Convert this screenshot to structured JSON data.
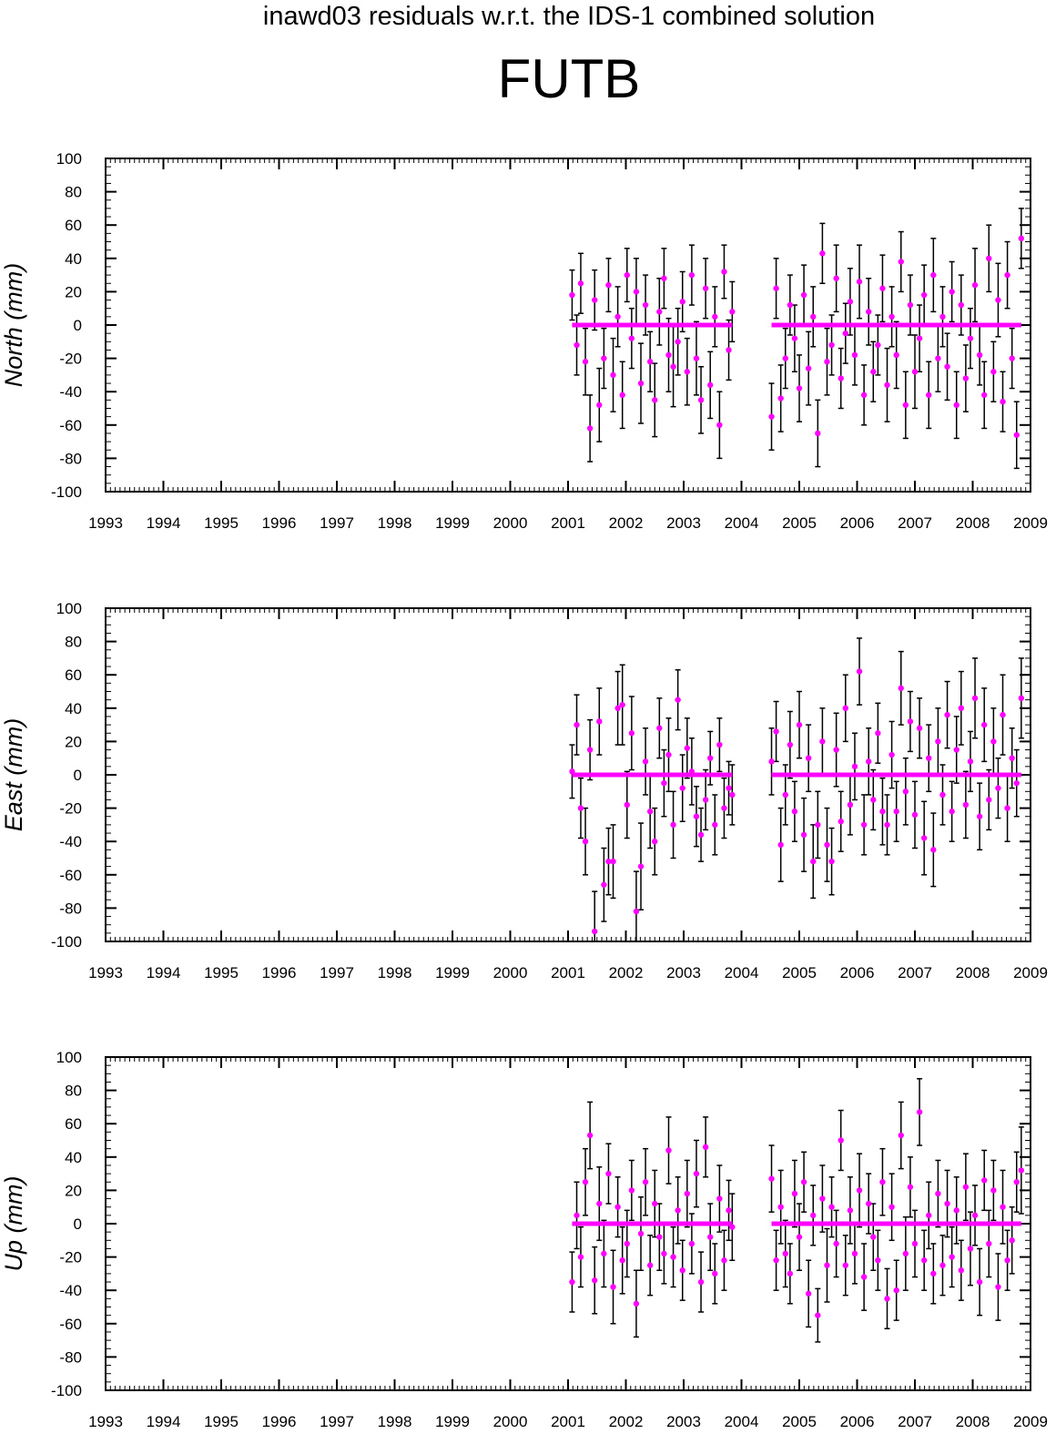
{
  "header": {
    "suptitle": "inawd03 residuals w.r.t. the IDS-1 combined solution",
    "station": "FUTB"
  },
  "colors": {
    "points": "#ff00ff",
    "errorbars": "#000000",
    "zero_line": "#ff00ff",
    "axes": "#000000"
  },
  "chart_data": [
    {
      "type": "scatter",
      "title": "",
      "ylabel": "North (mm)",
      "xlabel": "",
      "xlim": [
        1993,
        2009
      ],
      "ylim": [
        -100,
        100
      ],
      "x_ticks": [
        "1993",
        "1994",
        "1995",
        "1996",
        "1997",
        "1998",
        "1999",
        "2000",
        "2001",
        "2002",
        "2003",
        "2004",
        "2005",
        "2006",
        "2007",
        "2008",
        "2009"
      ],
      "y_ticks": [
        "100",
        "80",
        "60",
        "40",
        "20",
        "0",
        "-20",
        "-40",
        "-60",
        "-80",
        "-100"
      ],
      "error_bars": true,
      "zero_line": true,
      "x": [
        2001.07,
        2001.15,
        2001.22,
        2001.3,
        2001.38,
        2001.46,
        2001.54,
        2001.62,
        2001.7,
        2001.78,
        2001.86,
        2001.94,
        2002.02,
        2002.1,
        2002.18,
        2002.26,
        2002.34,
        2002.42,
        2002.5,
        2002.58,
        2002.66,
        2002.74,
        2002.82,
        2002.9,
        2002.98,
        2003.06,
        2003.14,
        2003.22,
        2003.3,
        2003.38,
        2003.46,
        2003.54,
        2003.62,
        2003.7,
        2003.78,
        2003.84,
        2004.52,
        2004.6,
        2004.68,
        2004.76,
        2004.84,
        2004.92,
        2005.0,
        2005.08,
        2005.16,
        2005.24,
        2005.32,
        2005.4,
        2005.48,
        2005.56,
        2005.64,
        2005.72,
        2005.8,
        2005.88,
        2005.96,
        2006.04,
        2006.12,
        2006.2,
        2006.28,
        2006.36,
        2006.44,
        2006.52,
        2006.6,
        2006.68,
        2006.76,
        2006.84,
        2006.92,
        2007.0,
        2007.08,
        2007.16,
        2007.24,
        2007.32,
        2007.4,
        2007.48,
        2007.56,
        2007.64,
        2007.72,
        2007.8,
        2007.88,
        2007.96,
        2008.04,
        2008.12,
        2008.2,
        2008.28,
        2008.36,
        2008.44,
        2008.52,
        2008.6,
        2008.68,
        2008.76,
        2008.84
      ],
      "y": [
        18,
        -12,
        25,
        -22,
        -62,
        15,
        -48,
        -20,
        24,
        -30,
        5,
        -42,
        30,
        -8,
        20,
        -35,
        12,
        -22,
        -45,
        8,
        28,
        -18,
        -25,
        -10,
        14,
        -28,
        30,
        -20,
        -45,
        22,
        -36,
        5,
        -60,
        32,
        -15,
        8,
        -55,
        22,
        -44,
        -20,
        12,
        -8,
        -38,
        18,
        -26,
        5,
        -65,
        43,
        -22,
        -12,
        28,
        -32,
        -5,
        14,
        -18,
        26,
        -42,
        8,
        -28,
        -12,
        22,
        -36,
        5,
        -18,
        38,
        -48,
        12,
        -28,
        -8,
        18,
        -42,
        30,
        -20,
        5,
        -25,
        20,
        -48,
        12,
        -32,
        -8,
        24,
        -18,
        -42,
        40,
        -28,
        15,
        -46,
        30,
        -20,
        -66,
        52
      ],
      "err": [
        15,
        18,
        18,
        20,
        20,
        18,
        22,
        18,
        16,
        22,
        18,
        20,
        16,
        18,
        20,
        24,
        18,
        18,
        22,
        20,
        18,
        22,
        24,
        20,
        18,
        20,
        18,
        22,
        20,
        18,
        20,
        18,
        20,
        16,
        18,
        18,
        20,
        18,
        20,
        18,
        18,
        20,
        20,
        18,
        22,
        18,
        20,
        18,
        20,
        18,
        20,
        18,
        18,
        20,
        18,
        22,
        18,
        20,
        18,
        18,
        20,
        22,
        18,
        20,
        18,
        20,
        18,
        22,
        20,
        18,
        20,
        22,
        20,
        18,
        20,
        18,
        20,
        18,
        20,
        18,
        22,
        18,
        20,
        20,
        18,
        22,
        18,
        20,
        18,
        20,
        18
      ],
      "series_notes": "Points cluster within about +/-30 mm of zero"
    },
    {
      "type": "scatter",
      "title": "",
      "ylabel": "East (mm)",
      "xlabel": "",
      "xlim": [
        1993,
        2009
      ],
      "ylim": [
        -100,
        100
      ],
      "x_ticks": [
        "1993",
        "1994",
        "1995",
        "1996",
        "1997",
        "1998",
        "1999",
        "2000",
        "2001",
        "2002",
        "2003",
        "2004",
        "2005",
        "2006",
        "2007",
        "2008",
        "2009"
      ],
      "y_ticks": [
        "100",
        "80",
        "60",
        "40",
        "20",
        "0",
        "-20",
        "-40",
        "-60",
        "-80",
        "-100"
      ],
      "error_bars": true,
      "zero_line": true,
      "x": [
        2001.07,
        2001.15,
        2001.22,
        2001.3,
        2001.38,
        2001.46,
        2001.54,
        2001.62,
        2001.7,
        2001.78,
        2001.86,
        2001.94,
        2002.02,
        2002.1,
        2002.18,
        2002.26,
        2002.34,
        2002.42,
        2002.5,
        2002.58,
        2002.66,
        2002.74,
        2002.82,
        2002.9,
        2002.98,
        2003.06,
        2003.14,
        2003.22,
        2003.3,
        2003.38,
        2003.46,
        2003.54,
        2003.62,
        2003.7,
        2003.78,
        2003.84,
        2004.52,
        2004.6,
        2004.68,
        2004.76,
        2004.84,
        2004.92,
        2005.0,
        2005.08,
        2005.16,
        2005.24,
        2005.32,
        2005.4,
        2005.48,
        2005.56,
        2005.64,
        2005.72,
        2005.8,
        2005.88,
        2005.96,
        2006.04,
        2006.12,
        2006.2,
        2006.28,
        2006.36,
        2006.44,
        2006.52,
        2006.6,
        2006.68,
        2006.76,
        2006.84,
        2006.92,
        2007.0,
        2007.08,
        2007.16,
        2007.24,
        2007.32,
        2007.4,
        2007.48,
        2007.56,
        2007.64,
        2007.72,
        2007.8,
        2007.88,
        2007.96,
        2008.04,
        2008.12,
        2008.2,
        2008.28,
        2008.36,
        2008.44,
        2008.52,
        2008.6,
        2008.68,
        2008.76,
        2008.84
      ],
      "y": [
        2,
        30,
        -20,
        -40,
        15,
        -94,
        32,
        -66,
        -52,
        -52,
        40,
        42,
        -18,
        25,
        -82,
        -55,
        8,
        -22,
        -40,
        28,
        -5,
        12,
        -30,
        45,
        -8,
        16,
        2,
        -25,
        -36,
        -15,
        10,
        -30,
        18,
        -20,
        -8,
        -12,
        8,
        26,
        -42,
        -12,
        18,
        -22,
        30,
        -36,
        10,
        -52,
        -30,
        20,
        -42,
        -52,
        15,
        -28,
        40,
        -18,
        5,
        62,
        -30,
        8,
        -15,
        25,
        -22,
        -30,
        12,
        -22,
        52,
        -10,
        32,
        -24,
        28,
        -38,
        10,
        -45,
        20,
        -12,
        36,
        -22,
        15,
        40,
        -18,
        8,
        46,
        -25,
        30,
        -15,
        20,
        -8,
        36,
        -20,
        10,
        -5,
        46
      ],
      "err": [
        16,
        18,
        18,
        20,
        18,
        24,
        20,
        22,
        20,
        22,
        22,
        24,
        20,
        22,
        24,
        26,
        20,
        22,
        20,
        18,
        20,
        22,
        20,
        18,
        20,
        18,
        20,
        18,
        16,
        18,
        16,
        18,
        16,
        18,
        16,
        18,
        20,
        18,
        22,
        18,
        20,
        18,
        20,
        22,
        20,
        22,
        20,
        20,
        22,
        20,
        22,
        18,
        20,
        18,
        20,
        20,
        18,
        20,
        18,
        18,
        20,
        18,
        20,
        18,
        22,
        20,
        18,
        20,
        18,
        22,
        20,
        22,
        20,
        18,
        20,
        18,
        20,
        22,
        20,
        18,
        24,
        20,
        22,
        18,
        20,
        18,
        24,
        20,
        18,
        20,
        24
      ],
      "series_notes": "Scatter widens to about -94 mm in 2001"
    },
    {
      "type": "scatter",
      "title": "",
      "ylabel": "Up (mm)",
      "xlabel": "",
      "xlim": [
        1993,
        2009
      ],
      "ylim": [
        -100,
        100
      ],
      "x_ticks": [
        "1993",
        "1994",
        "1995",
        "1996",
        "1997",
        "1998",
        "1999",
        "2000",
        "2001",
        "2002",
        "2003",
        "2004",
        "2005",
        "2006",
        "2007",
        "2008",
        "2009"
      ],
      "y_ticks": [
        "100",
        "80",
        "60",
        "40",
        "20",
        "0",
        "-20",
        "-40",
        "-60",
        "-80",
        "-100"
      ],
      "error_bars": true,
      "zero_line": true,
      "x": [
        2001.07,
        2001.15,
        2001.22,
        2001.3,
        2001.38,
        2001.46,
        2001.54,
        2001.62,
        2001.7,
        2001.78,
        2001.86,
        2001.94,
        2002.02,
        2002.1,
        2002.18,
        2002.26,
        2002.34,
        2002.42,
        2002.5,
        2002.58,
        2002.66,
        2002.74,
        2002.82,
        2002.9,
        2002.98,
        2003.06,
        2003.14,
        2003.22,
        2003.3,
        2003.38,
        2003.46,
        2003.54,
        2003.62,
        2003.7,
        2003.78,
        2003.84,
        2004.52,
        2004.6,
        2004.68,
        2004.76,
        2004.84,
        2004.92,
        2005.0,
        2005.08,
        2005.16,
        2005.24,
        2005.32,
        2005.4,
        2005.48,
        2005.56,
        2005.64,
        2005.72,
        2005.8,
        2005.88,
        2005.96,
        2006.04,
        2006.12,
        2006.2,
        2006.28,
        2006.36,
        2006.44,
        2006.52,
        2006.6,
        2006.68,
        2006.76,
        2006.84,
        2006.92,
        2007.0,
        2007.08,
        2007.16,
        2007.24,
        2007.32,
        2007.4,
        2007.48,
        2007.56,
        2007.64,
        2007.72,
        2007.8,
        2007.88,
        2007.96,
        2008.04,
        2008.12,
        2008.2,
        2008.28,
        2008.36,
        2008.44,
        2008.52,
        2008.6,
        2008.68,
        2008.76,
        2008.84
      ],
      "y": [
        -35,
        5,
        -20,
        25,
        53,
        -34,
        12,
        -18,
        30,
        -38,
        10,
        -22,
        -12,
        20,
        -48,
        -6,
        25,
        -25,
        12,
        -8,
        -18,
        44,
        -20,
        8,
        -28,
        18,
        -12,
        30,
        -35,
        46,
        -8,
        -30,
        15,
        -22,
        8,
        -2,
        27,
        -22,
        10,
        -18,
        -30,
        18,
        -8,
        25,
        -42,
        5,
        -55,
        15,
        -25,
        10,
        -12,
        50,
        -25,
        8,
        -18,
        20,
        -32,
        12,
        -8,
        -22,
        25,
        -45,
        10,
        -40,
        53,
        -18,
        22,
        -12,
        67,
        -22,
        5,
        -30,
        18,
        -25,
        12,
        -20,
        8,
        -28,
        22,
        -15,
        5,
        -35,
        26,
        -12,
        20,
        -38,
        10,
        -22,
        -10,
        25,
        32
      ],
      "err": [
        18,
        20,
        18,
        20,
        20,
        20,
        22,
        20,
        18,
        22,
        18,
        20,
        20,
        18,
        20,
        22,
        20,
        18,
        20,
        20,
        18,
        20,
        18,
        20,
        18,
        20,
        18,
        20,
        18,
        18,
        20,
        18,
        20,
        18,
        18,
        20,
        20,
        18,
        22,
        20,
        18,
        20,
        20,
        18,
        20,
        18,
        16,
        20,
        22,
        18,
        20,
        18,
        18,
        20,
        18,
        22,
        20,
        18,
        20,
        18,
        20,
        18,
        20,
        18,
        20,
        22,
        18,
        20,
        20,
        18,
        20,
        18,
        20,
        18,
        20,
        18,
        20,
        18,
        20,
        22,
        18,
        20,
        18,
        20,
        18,
        20,
        22,
        18,
        20,
        18,
        26
      ],
      "series_notes": "Largest residual about 67 mm in 2007"
    }
  ]
}
